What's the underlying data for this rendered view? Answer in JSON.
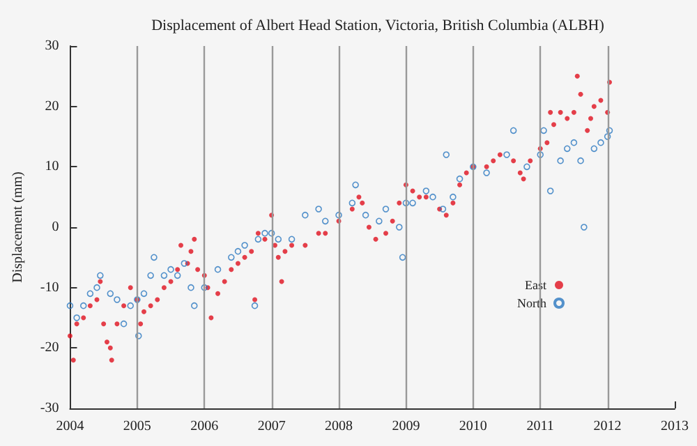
{
  "chart_data": {
    "type": "scatter",
    "title": "Displacement of Albert Head Station, Victoria, British Columbia (ALBH)",
    "ylabel": "Displacement (mm)",
    "xlim": [
      2004,
      2013
    ],
    "xticks": [
      2004,
      2005,
      2006,
      2007,
      2008,
      2009,
      2010,
      2011,
      2012,
      2013
    ],
    "ylim": [
      -30,
      30
    ],
    "yticks": [
      -30,
      -20,
      -10,
      0,
      10,
      20,
      30
    ],
    "grid": false,
    "legend": "right",
    "ref_lines": [
      {
        "axis": "x",
        "value": 2005,
        "color": "#999999"
      },
      {
        "axis": "x",
        "value": 2006,
        "color": "#999999"
      },
      {
        "axis": "x",
        "value": 2007,
        "color": "#999999"
      },
      {
        "axis": "x",
        "value": 2008,
        "color": "#999999"
      },
      {
        "axis": "x",
        "value": 2009,
        "color": "#999999"
      },
      {
        "axis": "x",
        "value": 2010,
        "color": "#999999"
      },
      {
        "axis": "x",
        "value": 2011,
        "color": "#999999"
      },
      {
        "axis": "x",
        "value": 2012,
        "color": "#999999"
      }
    ],
    "series": [
      {
        "name": "East",
        "color": "#e0101e",
        "marker": "circle",
        "x": [
          2004.0,
          2004.05,
          2004.1,
          2004.2,
          2004.3,
          2004.4,
          2004.45,
          2004.5,
          2004.55,
          2004.6,
          2004.62,
          2004.7,
          2004.8,
          2004.9,
          2005.0,
          2005.05,
          2005.1,
          2005.2,
          2005.3,
          2005.4,
          2005.5,
          2005.6,
          2005.65,
          2005.75,
          2005.8,
          2005.85,
          2005.9,
          2006.0,
          2006.05,
          2006.1,
          2006.2,
          2006.3,
          2006.4,
          2006.5,
          2006.6,
          2006.7,
          2006.75,
          2006.8,
          2006.9,
          2007.0,
          2007.05,
          2007.1,
          2007.15,
          2007.2,
          2007.3,
          2007.5,
          2007.7,
          2007.8,
          2008.0,
          2008.2,
          2008.3,
          2008.35,
          2008.45,
          2008.55,
          2008.7,
          2008.8,
          2008.9,
          2009.0,
          2009.1,
          2009.2,
          2009.3,
          2009.5,
          2009.6,
          2009.7,
          2009.8,
          2009.9,
          2010.0,
          2010.2,
          2010.3,
          2010.4,
          2010.6,
          2010.7,
          2010.75,
          2010.85,
          2011.0,
          2011.1,
          2011.15,
          2011.2,
          2011.3,
          2011.4,
          2011.5,
          2011.55,
          2011.6,
          2011.7,
          2011.75,
          2011.8,
          2011.9,
          2012.0,
          2012.03
        ],
        "values": [
          -18,
          -22,
          -16,
          -15,
          -13,
          -12,
          -9,
          -16,
          -19,
          -20,
          -22,
          -16,
          -13,
          -10,
          -12,
          -16,
          -14,
          -13,
          -12,
          -10,
          -9,
          -7,
          -3,
          -6,
          -4,
          -2,
          -7,
          -8,
          -10,
          -15,
          -11,
          -9,
          -7,
          -6,
          -5,
          -4,
          -12,
          -1,
          -2,
          2,
          -3,
          -5,
          -9,
          -4,
          -3,
          -3,
          -1,
          -1,
          1,
          3,
          5,
          4,
          0,
          -2,
          -1,
          1,
          4,
          7,
          6,
          5,
          5,
          3,
          2,
          4,
          7,
          9,
          10,
          10,
          11,
          12,
          11,
          9,
          8,
          11,
          13,
          14,
          19,
          17,
          19,
          18,
          19,
          25,
          22,
          16,
          18,
          20,
          21,
          19,
          24
        ]
      },
      {
        "name": "North",
        "color": "#2b78c0",
        "marker": "circle",
        "x": [
          2004.0,
          2004.1,
          2004.2,
          2004.3,
          2004.4,
          2004.45,
          2004.6,
          2004.7,
          2004.8,
          2004.9,
          2005.0,
          2005.02,
          2005.1,
          2005.2,
          2005.25,
          2005.4,
          2005.5,
          2005.6,
          2005.7,
          2005.8,
          2005.85,
          2006.0,
          2006.2,
          2006.4,
          2006.5,
          2006.6,
          2006.75,
          2006.8,
          2006.9,
          2007.0,
          2007.1,
          2007.3,
          2007.5,
          2007.7,
          2007.8,
          2008.0,
          2008.2,
          2008.25,
          2008.4,
          2008.6,
          2008.7,
          2008.9,
          2008.95,
          2009.0,
          2009.1,
          2009.3,
          2009.4,
          2009.55,
          2009.6,
          2009.7,
          2009.8,
          2010.0,
          2010.2,
          2010.5,
          2010.6,
          2010.8,
          2011.0,
          2011.05,
          2011.15,
          2011.3,
          2011.4,
          2011.5,
          2011.6,
          2011.65,
          2011.8,
          2011.9,
          2012.0,
          2012.03
        ],
        "values": [
          -13,
          -15,
          -13,
          -11,
          -10,
          -8,
          -11,
          -12,
          -16,
          -13,
          -12,
          -18,
          -11,
          -8,
          -5,
          -8,
          -7,
          -8,
          -6,
          -10,
          -13,
          -10,
          -7,
          -5,
          -4,
          -3,
          -13,
          -2,
          -1,
          -1,
          -2,
          -2,
          2,
          3,
          1,
          2,
          4,
          7,
          2,
          1,
          3,
          0,
          -5,
          4,
          4,
          6,
          5,
          3,
          12,
          5,
          8,
          10,
          9,
          12,
          16,
          10,
          12,
          16,
          6,
          11,
          13,
          14,
          11,
          0,
          13,
          14,
          15,
          16
        ]
      }
    ]
  }
}
